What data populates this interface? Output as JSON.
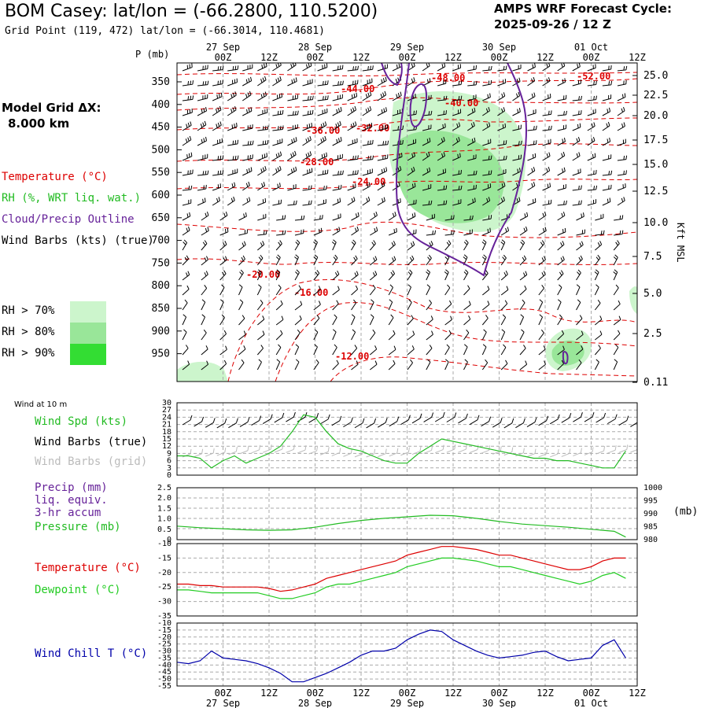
{
  "header": {
    "title": "BOM Casey:  lat/lon = (-66.2800, 110.5200)",
    "grid_point": "Grid Point (119, 472) lat/lon = (-66.3014, 110.4681)",
    "cycle_line1": "AMPS WRF Forecast Cycle:",
    "cycle_line2": "2025-09-26 / 12  Z"
  },
  "left_panel": {
    "model_grid_line1": "Model Grid ΔX:",
    "model_grid_line2": "8.000 km",
    "temperature": "Temperature (°C)",
    "rh": "RH (%, WRT liq. wat.)",
    "cloud": "Cloud/Precip Outline",
    "wind_barbs": "Wind Barbs (kts) (true)",
    "rh70": "RH > 70%",
    "rh80": "RH > 80%",
    "rh90": "RH > 90%",
    "rh70_color": "#ccf5cc",
    "rh80_color": "#99e699",
    "rh90_color": "#33dd33"
  },
  "colors": {
    "temp": "#dd0000",
    "rh": "#22bb22",
    "cloud": "#662299",
    "dew": "#22cc22",
    "chill": "#0000aa",
    "grid": "#aaaaaa",
    "gray_barb": "#bbbbbb"
  },
  "time_axis": {
    "day_labels": [
      "27 Sep",
      "28 Sep",
      "29 Sep",
      "30 Sep",
      "01 Oct"
    ],
    "hour_labels": [
      "00Z",
      "12Z",
      "00Z",
      "12Z",
      "00Z",
      "12Z",
      "00Z",
      "12Z",
      "00Z",
      "12Z"
    ]
  },
  "panels": {
    "upper": {
      "ylabel_left": "P (mb)",
      "ylabel_right": "Kft MSL",
      "pressure_ticks": [
        "350",
        "400",
        "450",
        "500",
        "550",
        "600",
        "650",
        "700",
        "750",
        "800",
        "850",
        "900",
        "950"
      ],
      "height_ticks": [
        "25.0",
        "22.5",
        "20.0",
        "17.5",
        "15.0",
        "12.5",
        "10.0",
        "7.5",
        "5.0",
        "2.5",
        "0.11"
      ],
      "temp_labels": [
        "-52.00",
        "-48.00",
        "-44.00",
        "-40.00",
        "-36.00",
        "-32.00",
        "-28.00",
        "-24.00",
        "-20.00",
        "-16.00",
        "-12.00"
      ]
    },
    "wind": {
      "title": "Wind at 10 m",
      "spd_label": "Wind Spd (kts)",
      "barbs_true": "Wind Barbs (true)",
      "barbs_grid": "Wind Barbs (grid)",
      "y_ticks": [
        "30",
        "27",
        "24",
        "21",
        "18",
        "15",
        "12",
        "9",
        "6",
        "3",
        "0"
      ]
    },
    "precip": {
      "precip_label": "Precip (mm)",
      "liq_label": "liq. equiv.",
      "accum_label": "3-hr accum",
      "pressure_label": "Pressure (mb)",
      "units_right": "(mb)",
      "y_ticks_left": [
        "2.5",
        "2.0",
        "1.5",
        "1.0",
        "0.5",
        "0"
      ],
      "y_ticks_right": [
        "1000",
        "995",
        "990",
        "985",
        "980"
      ]
    },
    "temp": {
      "temp_label": "Temperature (°C)",
      "dew_label": "Dewpoint (°C)",
      "y_ticks": [
        "-10",
        "-15",
        "-20",
        "-25",
        "-30",
        "-35"
      ]
    },
    "chill": {
      "chill_label": "Wind Chill T (°C)",
      "y_ticks": [
        "-10",
        "-15",
        "-20",
        "-25",
        "-30",
        "-35",
        "-40",
        "-45",
        "-50",
        "-55"
      ]
    }
  },
  "chart_data": [
    {
      "type": "line",
      "title": "Wind at 10 m",
      "ylim": [
        0,
        30
      ],
      "hours_from_start": [
        0,
        3,
        6,
        9,
        12,
        15,
        18,
        21,
        24,
        27,
        30,
        33,
        36,
        39,
        42,
        45,
        48,
        51,
        54,
        57,
        60,
        63,
        66,
        69,
        72,
        75,
        78,
        81,
        84,
        87,
        90,
        93,
        96,
        99,
        102,
        105,
        108,
        111,
        114,
        117
      ],
      "series": [
        {
          "name": "Wind Spd (kts)",
          "values": [
            8,
            8,
            7,
            3,
            6,
            8,
            5,
            7,
            9,
            12,
            18,
            25,
            24,
            18,
            13,
            11,
            10,
            8,
            6,
            5,
            5,
            9,
            12,
            15,
            14,
            13,
            12,
            11,
            10,
            9,
            8,
            7,
            7,
            6,
            6,
            5,
            4,
            3,
            3,
            10
          ]
        }
      ]
    },
    {
      "type": "line",
      "title": "3-hr accum / Pressure (mb)",
      "ylim_pressure": [
        980,
        1000
      ],
      "hours_from_start": [
        0,
        6,
        12,
        18,
        24,
        30,
        36,
        42,
        48,
        54,
        60,
        66,
        72,
        78,
        84,
        90,
        96,
        102,
        108,
        114,
        117
      ],
      "series": [
        {
          "name": "Pressure (mb)",
          "values": [
            985.2,
            984.6,
            984.2,
            983.8,
            983.6,
            983.8,
            984.8,
            986.2,
            987.4,
            988.2,
            988.8,
            989.4,
            989.2,
            988.2,
            987.0,
            986.0,
            985.4,
            984.8,
            984.0,
            983.2,
            981.0
          ]
        }
      ]
    },
    {
      "type": "line",
      "ylim": [
        -35,
        -10
      ],
      "hours_from_start": [
        0,
        3,
        6,
        9,
        12,
        15,
        18,
        21,
        24,
        27,
        30,
        33,
        36,
        39,
        42,
        45,
        48,
        51,
        54,
        57,
        60,
        63,
        66,
        69,
        72,
        75,
        78,
        81,
        84,
        87,
        90,
        93,
        96,
        99,
        102,
        105,
        108,
        111,
        114,
        117
      ],
      "series": [
        {
          "name": "Temperature (°C)",
          "values": [
            -24,
            -24,
            -24.5,
            -24.5,
            -25,
            -25,
            -25,
            -25,
            -25.5,
            -26.5,
            -26,
            -25,
            -24,
            -22,
            -21,
            -20,
            -19,
            -18,
            -17,
            -16,
            -14,
            -13,
            -12,
            -11,
            -11,
            -11.5,
            -12,
            -13,
            -14,
            -14,
            -15,
            -16,
            -17,
            -18,
            -19,
            -19,
            -18,
            -16,
            -15,
            -15
          ]
        },
        {
          "name": "Dewpoint (°C)",
          "values": [
            -26,
            -26,
            -26.5,
            -27,
            -27,
            -27,
            -27,
            -27,
            -28,
            -29,
            -29,
            -28,
            -27,
            -25,
            -24,
            -24,
            -23,
            -22,
            -21,
            -20,
            -18,
            -17,
            -16,
            -15,
            -15,
            -15.5,
            -16,
            -17,
            -18,
            -18,
            -19,
            -20,
            -21,
            -22,
            -23,
            -24,
            -23,
            -21,
            -20,
            -22
          ]
        }
      ]
    },
    {
      "type": "line",
      "ylim": [
        -55,
        -10
      ],
      "hours_from_start": [
        0,
        3,
        6,
        9,
        12,
        15,
        18,
        21,
        24,
        27,
        30,
        33,
        36,
        39,
        42,
        45,
        48,
        51,
        54,
        57,
        60,
        63,
        66,
        69,
        72,
        75,
        78,
        81,
        84,
        87,
        90,
        93,
        96,
        99,
        102,
        105,
        108,
        111,
        114,
        117
      ],
      "series": [
        {
          "name": "Wind Chill T (°C)",
          "values": [
            -38,
            -39,
            -37,
            -30,
            -35,
            -36,
            -37,
            -39,
            -42,
            -46,
            -52,
            -52,
            -49,
            -46,
            -42,
            -38,
            -33,
            -30,
            -30,
            -28,
            -22,
            -18,
            -15,
            -16,
            -22,
            -26,
            -30,
            -33,
            -35,
            -34,
            -33,
            -31,
            -30,
            -34,
            -37,
            -36,
            -35,
            -26,
            -22,
            -35
          ]
        }
      ]
    }
  ]
}
